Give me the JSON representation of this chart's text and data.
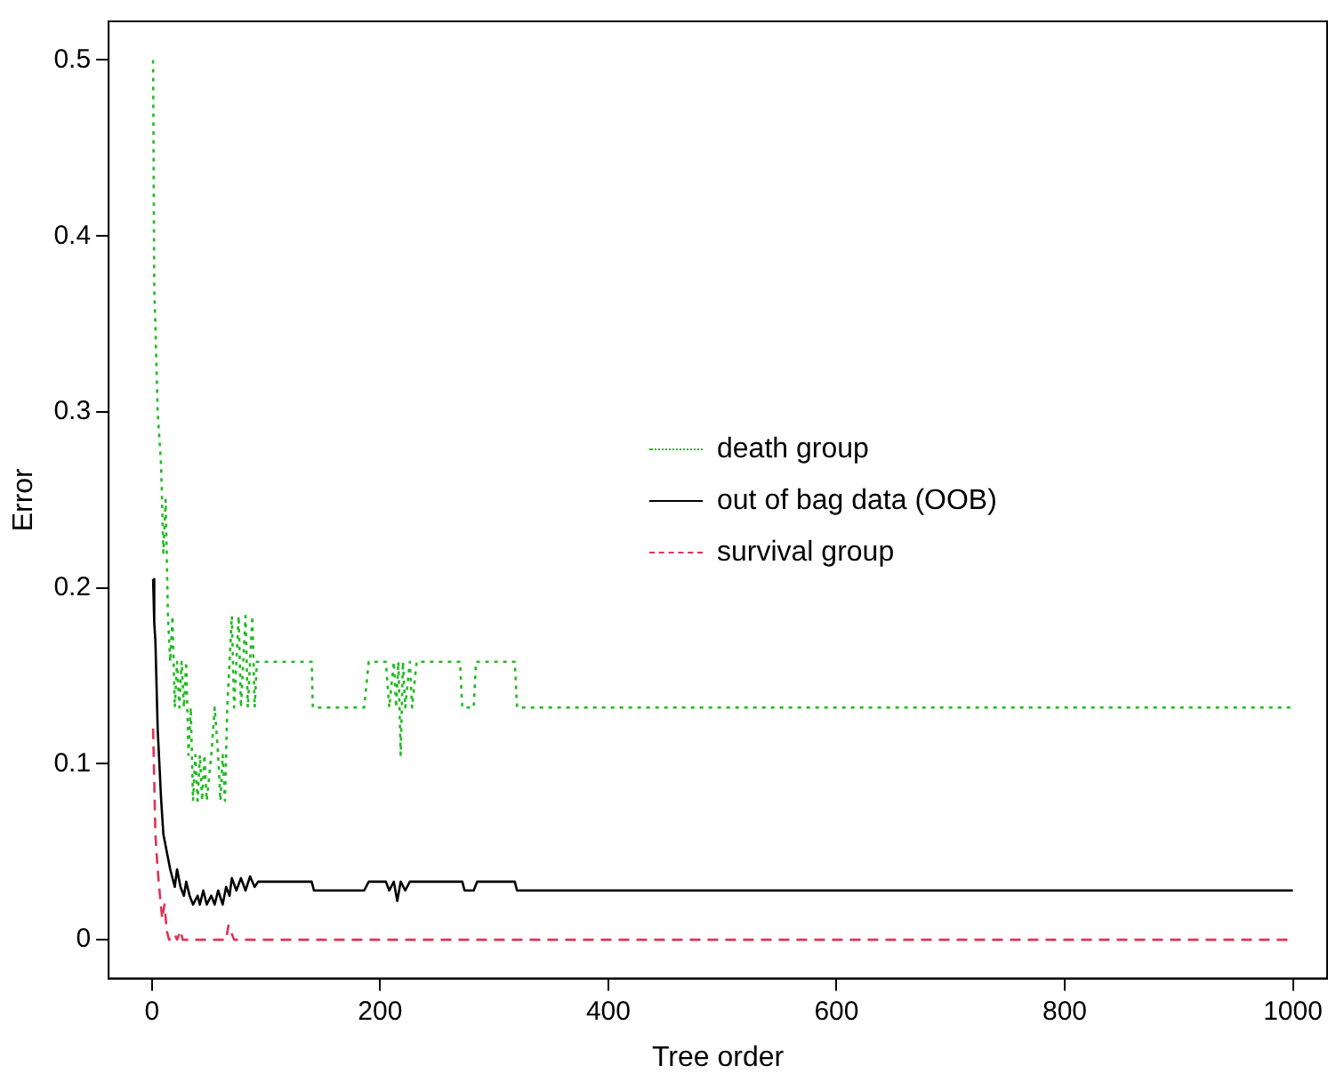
{
  "chart_data": {
    "type": "line",
    "xlabel": "Tree order",
    "ylabel": "Error",
    "xlim": [
      -38,
      1030
    ],
    "ylim": [
      -0.022,
      0.522
    ],
    "xticks": [
      0,
      200,
      400,
      600,
      800,
      1000
    ],
    "yticks": [
      0,
      0.1,
      0.2,
      0.3,
      0.4,
      0.5
    ],
    "grid": false,
    "legend": "center",
    "marker": "none",
    "series": [
      {
        "name": "death group",
        "color": "#22bb22",
        "line_style": "dotted",
        "x": [
          1,
          2,
          3,
          5,
          8,
          10,
          12,
          14,
          16,
          18,
          20,
          22,
          24,
          26,
          28,
          30,
          32,
          34,
          36,
          38,
          40,
          42,
          44,
          46,
          48,
          52,
          55,
          58,
          60,
          62,
          64,
          66,
          68,
          70,
          72,
          74,
          76,
          78,
          80,
          82,
          84,
          86,
          88,
          90,
          92,
          140,
          141,
          186,
          190,
          205,
          208,
          212,
          214,
          216,
          218,
          220,
          222,
          226,
          228,
          232,
          270,
          272,
          282,
          284,
          318,
          320,
          1000
        ],
        "values": [
          0.5,
          0.37,
          0.35,
          0.3,
          0.27,
          0.22,
          0.25,
          0.184,
          0.158,
          0.184,
          0.132,
          0.158,
          0.132,
          0.158,
          0.132,
          0.158,
          0.105,
          0.132,
          0.079,
          0.105,
          0.079,
          0.105,
          0.079,
          0.105,
          0.079,
          0.105,
          0.132,
          0.105,
          0.079,
          0.105,
          0.079,
          0.132,
          0.158,
          0.184,
          0.132,
          0.158,
          0.184,
          0.132,
          0.158,
          0.184,
          0.132,
          0.158,
          0.184,
          0.132,
          0.158,
          0.158,
          0.132,
          0.132,
          0.158,
          0.158,
          0.132,
          0.158,
          0.132,
          0.158,
          0.105,
          0.158,
          0.132,
          0.158,
          0.132,
          0.158,
          0.158,
          0.132,
          0.132,
          0.158,
          0.158,
          0.132,
          0.132
        ]
      },
      {
        "name": "out of bag data (OOB)",
        "color": "#000000",
        "line_style": "solid",
        "x": [
          1,
          2,
          3,
          5,
          8,
          10,
          13,
          16,
          20,
          22,
          25,
          28,
          30,
          33,
          36,
          40,
          42,
          45,
          48,
          52,
          55,
          58,
          62,
          65,
          68,
          70,
          74,
          78,
          82,
          86,
          90,
          93,
          140,
          142,
          186,
          190,
          205,
          208,
          212,
          215,
          218,
          222,
          226,
          272,
          274,
          282,
          285,
          318,
          320,
          1000
        ],
        "values": [
          0.205,
          0.18,
          0.17,
          0.12,
          0.08,
          0.06,
          0.05,
          0.04,
          0.03,
          0.04,
          0.03,
          0.025,
          0.033,
          0.025,
          0.02,
          0.025,
          0.02,
          0.028,
          0.02,
          0.025,
          0.02,
          0.028,
          0.02,
          0.03,
          0.025,
          0.035,
          0.028,
          0.035,
          0.028,
          0.036,
          0.03,
          0.033,
          0.033,
          0.028,
          0.028,
          0.033,
          0.033,
          0.028,
          0.033,
          0.022,
          0.033,
          0.028,
          0.033,
          0.033,
          0.028,
          0.028,
          0.033,
          0.033,
          0.028,
          0.028
        ]
      },
      {
        "name": "survival group",
        "color": "#dd3355",
        "line_style": "dashed",
        "x": [
          1,
          2,
          3,
          5,
          7,
          9,
          11,
          13,
          15,
          20,
          22,
          25,
          27,
          65,
          67,
          69,
          72,
          1000
        ],
        "values": [
          0.12,
          0.09,
          0.06,
          0.04,
          0.025,
          0.012,
          0.02,
          0.005,
          0,
          0.003,
          0,
          0.005,
          0,
          0,
          0.008,
          0.005,
          0,
          0
        ]
      }
    ]
  }
}
